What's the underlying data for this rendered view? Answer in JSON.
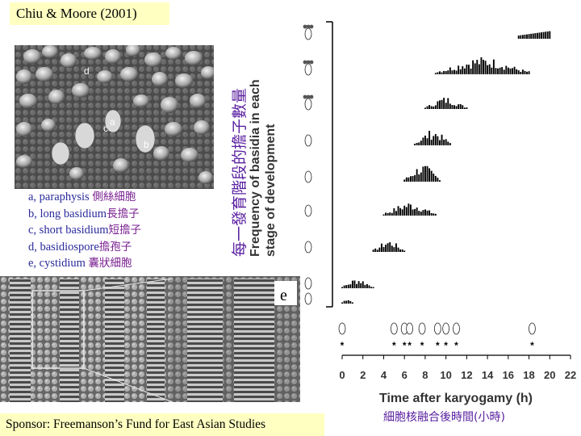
{
  "citation": "Chiu & Moore (2001)",
  "sponsor": "Sponsor: Freemanson’s Fund for East Asian Studies",
  "legend": [
    {
      "text": "a, paraphysis ",
      "cjk": "側絲細胞"
    },
    {
      "text": "b, long basidium",
      "cjk": "長擔子"
    },
    {
      "text": "c, short basidium",
      "cjk": "短擔子"
    },
    {
      "text": "d, basidiospore",
      "cjk": "擔孢子"
    },
    {
      "text": "e, cystidium ",
      "cjk": "囊狀細胞"
    }
  ],
  "micrograph_top": {
    "labels": [
      "d",
      "a",
      "c",
      "b"
    ]
  },
  "micrograph_bottom": {
    "label": "e"
  },
  "chart_data": {
    "type": "bar",
    "xlabel": "Time after karyogamy (h)",
    "xlabel_cjk": "細胞核融合後時間(小時)",
    "ylabel": "Frequency of basidia in each stage of development",
    "ylabel_cjk": "每一發育階段的擔子數量",
    "xlim": [
      0,
      22
    ],
    "xticks": [
      0,
      2,
      4,
      6,
      8,
      10,
      12,
      14,
      16,
      18,
      20,
      22
    ],
    "stage_marker_times": [
      0,
      5,
      6,
      6.5,
      7.7,
      9.2,
      10,
      11,
      18.3
    ],
    "stages": [
      {
        "stage": 1,
        "range": [
          0,
          1
        ],
        "peak": 0.4
      },
      {
        "stage": 2,
        "range": [
          0,
          3
        ],
        "peak": 0.6
      },
      {
        "stage": 3,
        "range": [
          3,
          6
        ],
        "peak": 0.7
      },
      {
        "stage": 4,
        "range": [
          4,
          9
        ],
        "peak": 0.8
      },
      {
        "stage": 5,
        "range": [
          6,
          9.5
        ],
        "peak": 1.0
      },
      {
        "stage": 6,
        "range": [
          7,
          10.5
        ],
        "peak": 0.9
      },
      {
        "stage": 7,
        "range": [
          8,
          12
        ],
        "peak": 0.7
      },
      {
        "stage": 8,
        "range": [
          9,
          18
        ],
        "peak": 1.0
      },
      {
        "stage": 9,
        "range": [
          17,
          20
        ],
        "peak": 0.6
      }
    ]
  }
}
